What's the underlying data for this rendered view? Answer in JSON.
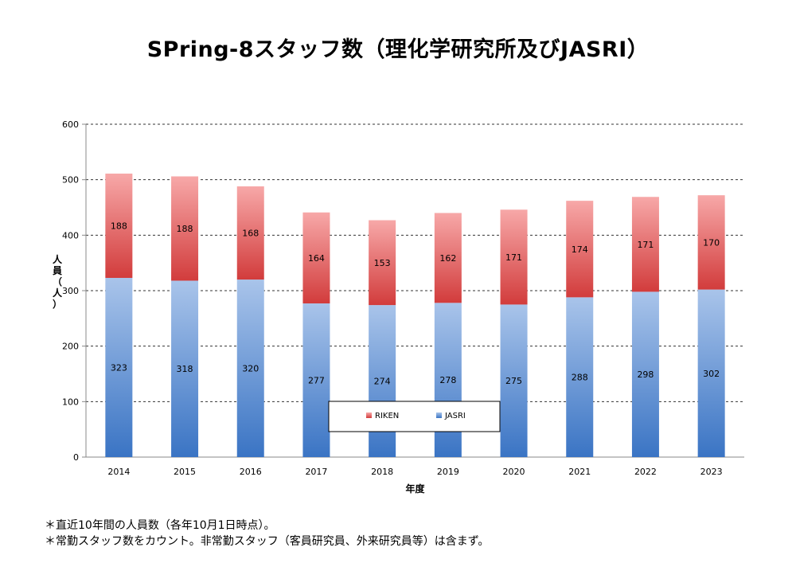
{
  "title": "SPring-8スタッフ数（理化学研究所及びJASRI）",
  "notes": [
    "＊直近10年間の人員数（各年10月1日時点）。",
    "＊常勤スタッフ数をカウント。非常勤スタッフ（客員研究員、外来研究員等）は含まず。"
  ],
  "chart_data": {
    "type": "bar",
    "stacked": true,
    "title": "SPring-8スタッフ数（理化学研究所及びJASRI）",
    "xlabel": "年度",
    "ylabel": "人員（人）",
    "ylim": [
      0,
      600
    ],
    "yticks": [
      0,
      100,
      200,
      300,
      400,
      500,
      600
    ],
    "grid": true,
    "legend_position": "bottom-center",
    "categories": [
      "2014",
      "2015",
      "2016",
      "2017",
      "2018",
      "2019",
      "2020",
      "2021",
      "2022",
      "2023"
    ],
    "series": [
      {
        "name": "JASRI",
        "values": [
          323,
          318,
          320,
          277,
          274,
          278,
          275,
          288,
          298,
          302
        ]
      },
      {
        "name": "RIKEN",
        "values": [
          188,
          188,
          168,
          164,
          153,
          162,
          171,
          174,
          171,
          170
        ]
      }
    ],
    "colors": {
      "JASRI_top": "#a9c4ea",
      "JASRI_bottom": "#3a74c4",
      "RIKEN_top": "#f7a8a8",
      "RIKEN_bottom": "#d23c3c"
    }
  }
}
